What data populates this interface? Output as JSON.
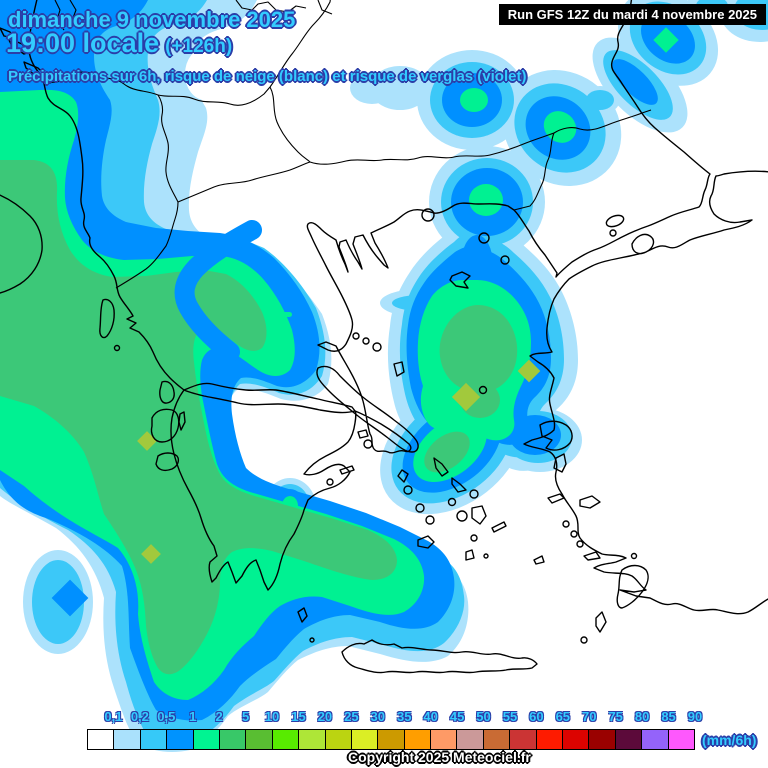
{
  "header": {
    "date_line": "dimanche 9 novembre 2025",
    "time_line": "19:00 locale",
    "offset_label": "(+126h)",
    "subtitle": "Précipitations sur 6h, risque de neige (blanc) et risque de verglas (violet)",
    "run_info": "Run GFS 12Z du mardi 4 novembre 2025"
  },
  "legend": {
    "unit_label": "(mm/6h)",
    "values": [
      "0,1",
      "0,2",
      "0,5",
      "1",
      "2",
      "5",
      "10",
      "15",
      "20",
      "25",
      "30",
      "35",
      "40",
      "45",
      "50",
      "55",
      "60",
      "65",
      "70",
      "75",
      "80",
      "85",
      "90"
    ],
    "colors": [
      "#FFFFFF",
      "#AAE1FC",
      "#36C9F8",
      "#0093FE",
      "#00F492",
      "#38C868",
      "#59BE32",
      "#58EB00",
      "#AEE637",
      "#BBD411",
      "#DBEE25",
      "#CC9A00",
      "#FF9E00",
      "#FE9A66",
      "#CB9999",
      "#C96B34",
      "#CB3434",
      "#FE1B00",
      "#DC0300",
      "#9A0100",
      "#5C0A3A",
      "#9463FA",
      "#FE58FD"
    ]
  },
  "footer": {
    "copyright": "Copyright 2025 Meteociel.fr"
  },
  "map": {
    "palette": {
      "trace": "#ACE2FC",
      "light": "#3CC8F8",
      "moderate": "#0090FF",
      "rain1": "#00F192",
      "rain2": "#3CC878",
      "rain5": "#A2C93C",
      "text": "#33CCFF",
      "outline": "#2B3EA8"
    }
  }
}
